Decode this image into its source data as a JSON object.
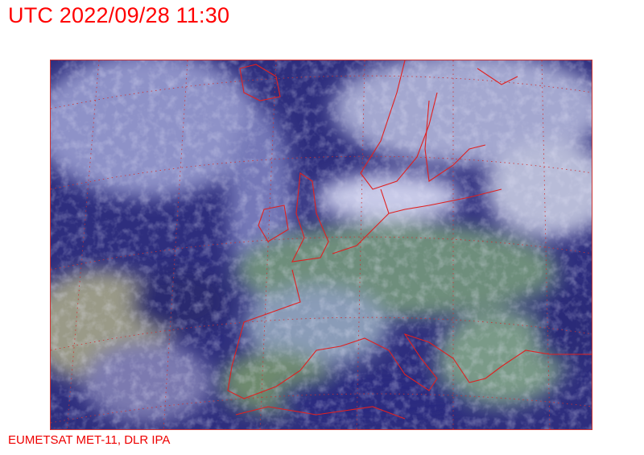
{
  "header": {
    "title": "UTC 2022/09/28 11:30"
  },
  "footer": {
    "credit": "EUMETSAT MET-11, DLR IPA"
  },
  "map": {
    "type": "satellite-composite",
    "region": "Europe",
    "colors": {
      "sea": "#2a2a78",
      "cloud": "#b0b4e0",
      "land": "#5e8a70",
      "coastline": "#e02020",
      "grid": "#d03030"
    }
  }
}
